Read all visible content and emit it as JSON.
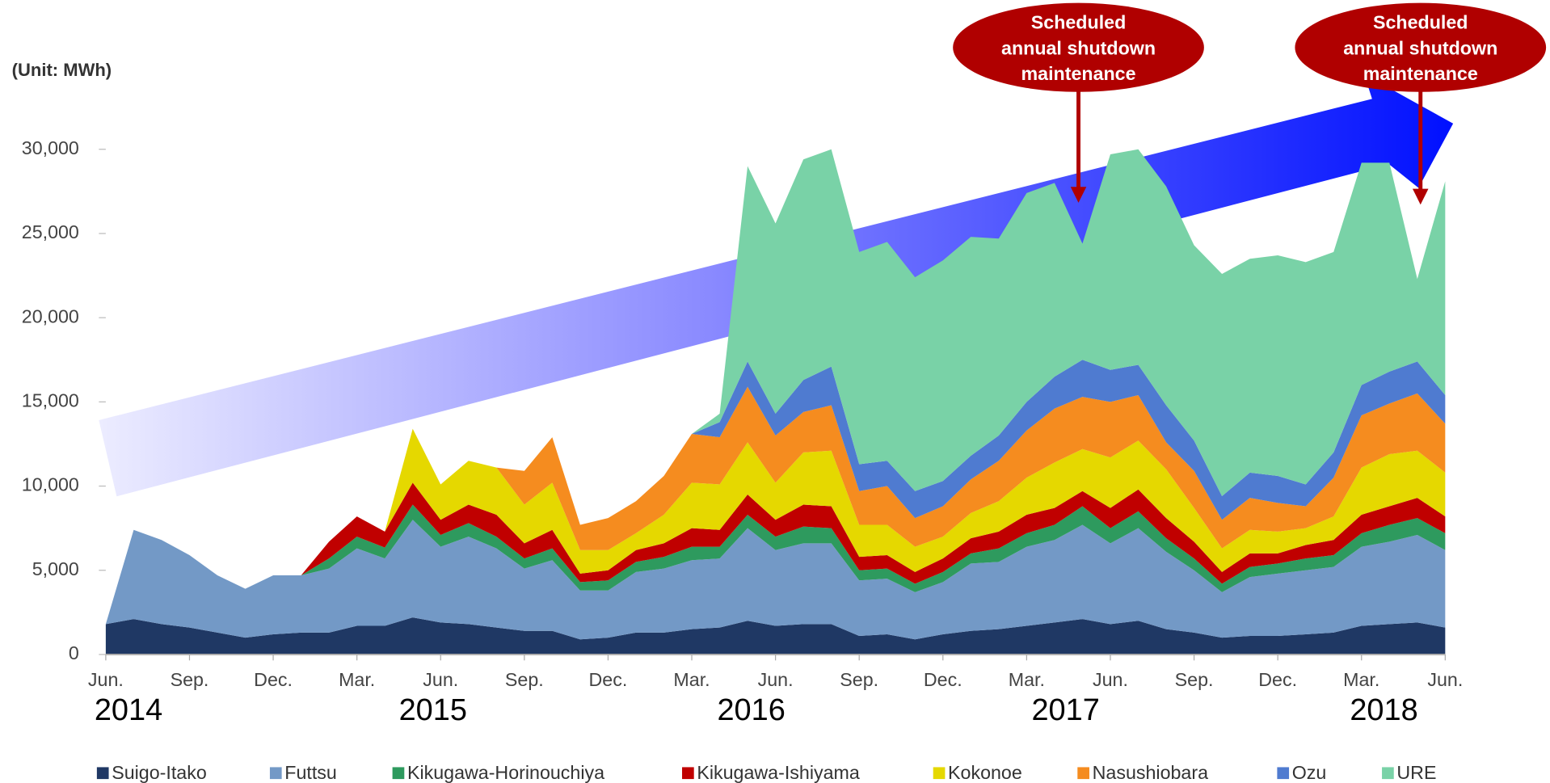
{
  "chart_data": {
    "type": "stacked_area",
    "y_label": "(Unit: MWh)",
    "categories": [
      "Jun.",
      null,
      null,
      "Sep.",
      null,
      null,
      "Dec.",
      null,
      null,
      "Mar.",
      null,
      null,
      "Jun.",
      null,
      null,
      "Sep.",
      null,
      null,
      "Dec.",
      null,
      null,
      "Mar.",
      null,
      null,
      "Jun.",
      null,
      null,
      "Sep.",
      null,
      null,
      "Dec.",
      null,
      null,
      "Mar.",
      null,
      null,
      "Jun.",
      null,
      null,
      "Sep.",
      null,
      null,
      "Dec.",
      null,
      null,
      "Mar.",
      null,
      null,
      "Jun."
    ],
    "years": [
      "2014",
      "2015",
      "2016",
      "2017",
      "2018"
    ],
    "ylim": [
      0,
      30000
    ],
    "yticks": [
      0,
      {
        "value": 5000,
        "label": "5,000"
      },
      {
        "value": 10000,
        "label": "10,000"
      },
      {
        "value": 15000,
        "label": "15,000"
      },
      {
        "value": 20000,
        "label": "20,000"
      },
      {
        "value": 25000,
        "label": "25,000"
      },
      {
        "value": 30000,
        "label": "30,000"
      }
    ],
    "grid": false,
    "legend": "bottom",
    "annotations": [
      {
        "lines": [
          "Scheduled",
          "annual shutdown",
          "maintenance"
        ],
        "color": "#b00000"
      },
      {
        "lines": [
          "Scheduled",
          "annual shutdown",
          "maintenance"
        ],
        "color": "#b00000"
      }
    ],
    "series": [
      {
        "name": "Suigo-Itako",
        "color": "#1f3864",
        "values": [
          1800,
          2100,
          1800,
          1600,
          1300,
          1000,
          1200,
          1300,
          1300,
          1700,
          1700,
          2200,
          1900,
          1800,
          1600,
          1400,
          1400,
          900,
          1000,
          1300,
          1300,
          1500,
          1600,
          2000,
          1700,
          1800,
          1800,
          1100,
          1200,
          900,
          1200,
          1400,
          1500,
          1700,
          1900,
          2100,
          1800,
          2000,
          1500,
          1300,
          1000,
          1100,
          1100,
          1200,
          1300,
          1700,
          1800,
          1900,
          1600
        ]
      },
      {
        "name": "Futtsu",
        "color": "#7399c6",
        "values": [
          0,
          5300,
          5000,
          4300,
          3400,
          2900,
          3500,
          3400,
          3800,
          4600,
          4000,
          5800,
          4500,
          5200,
          4700,
          3700,
          4200,
          2900,
          2800,
          3600,
          3800,
          4100,
          4100,
          5500,
          4500,
          4800,
          4800,
          3300,
          3300,
          2800,
          3100,
          4000,
          4000,
          4700,
          4900,
          5600,
          4800,
          5500,
          4600,
          3700,
          2700,
          3500,
          3700,
          3800,
          3900,
          4700,
          4900,
          5200,
          4600
        ]
      },
      {
        "name": "Kikugawa-Horinouchiya",
        "color": "#2e9a5e",
        "values": [
          0,
          0,
          0,
          0,
          0,
          0,
          0,
          0,
          600,
          700,
          650,
          900,
          700,
          800,
          700,
          600,
          700,
          500,
          600,
          600,
          700,
          800,
          700,
          800,
          800,
          1000,
          900,
          600,
          600,
          500,
          600,
          600,
          800,
          800,
          900,
          1100,
          900,
          1000,
          800,
          700,
          500,
          600,
          600,
          700,
          700,
          800,
          1000,
          1000,
          1000
        ]
      },
      {
        "name": "Kikugawa-Ishiyama",
        "color": "#c00000",
        "values": [
          0,
          0,
          0,
          0,
          0,
          0,
          0,
          0,
          1000,
          1200,
          950,
          1300,
          900,
          1100,
          1300,
          900,
          1100,
          500,
          600,
          700,
          800,
          1100,
          1000,
          1200,
          1000,
          1300,
          1300,
          800,
          800,
          700,
          800,
          900,
          1000,
          1100,
          1000,
          900,
          1200,
          1300,
          1200,
          1000,
          700,
          800,
          600,
          800,
          900,
          1100,
          1100,
          1200,
          1000
        ]
      },
      {
        "name": "Kokonoe",
        "color": "#e5d800",
        "values": [
          0,
          0,
          0,
          0,
          0,
          0,
          0,
          0,
          0,
          0,
          0,
          3200,
          2100,
          2600,
          2800,
          2300,
          2800,
          1400,
          1200,
          1000,
          1700,
          2700,
          2700,
          3100,
          2200,
          3100,
          3300,
          1900,
          1800,
          1500,
          1300,
          1500,
          1800,
          2200,
          2700,
          2500,
          3000,
          2900,
          2900,
          2000,
          1400,
          1400,
          1300,
          1000,
          1400,
          2800,
          3100,
          2800,
          2600
        ]
      },
      {
        "name": "Nasushiobara",
        "color": "#f58c1f",
        "values": [
          0,
          0,
          0,
          0,
          0,
          0,
          0,
          0,
          0,
          0,
          0,
          0,
          0,
          0,
          0,
          2000,
          2700,
          1500,
          1900,
          1900,
          2300,
          2900,
          2800,
          3300,
          2800,
          2400,
          2700,
          2000,
          2300,
          1700,
          1800,
          2000,
          2400,
          2800,
          3200,
          3100,
          3300,
          2700,
          1600,
          2200,
          1700,
          1900,
          1700,
          1300,
          2300,
          3100,
          3000,
          3400,
          2900
        ]
      },
      {
        "name": "Ozu",
        "color": "#4f7bd0",
        "values": [
          0,
          0,
          0,
          0,
          0,
          0,
          0,
          0,
          0,
          0,
          0,
          0,
          0,
          0,
          0,
          0,
          0,
          0,
          0,
          0,
          0,
          0,
          900,
          1500,
          1300,
          1900,
          2300,
          1600,
          1500,
          1600,
          1500,
          1400,
          1500,
          1700,
          1900,
          2200,
          1900,
          1800,
          2200,
          1800,
          1400,
          1500,
          1600,
          1300,
          1500,
          1800,
          1900,
          1900,
          1700
        ]
      },
      {
        "name": "URE",
        "color": "#79d2a7",
        "values": [
          0,
          0,
          0,
          0,
          0,
          0,
          0,
          0,
          0,
          0,
          0,
          0,
          0,
          0,
          0,
          0,
          0,
          0,
          0,
          0,
          0,
          0,
          500,
          11600,
          11300,
          13100,
          12900,
          12600,
          13000,
          12700,
          13100,
          13000,
          11700,
          12400,
          11500,
          6900,
          12800,
          12800,
          13000,
          11600,
          13200,
          12700,
          13100,
          13200,
          11900,
          13200,
          12400,
          4900,
          12700
        ]
      }
    ]
  }
}
